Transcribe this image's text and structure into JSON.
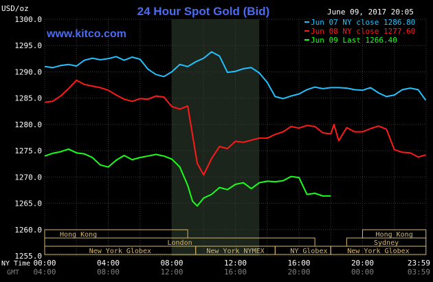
{
  "header": {
    "unit_label": "USD/oz",
    "title": "24 Hour Spot Gold (Bid)",
    "date": "June 09, 2017 20:05",
    "site": "www.kitco.com"
  },
  "colors": {
    "background": "#000000",
    "title": "#4a6cf0",
    "site": "#4a6cf0",
    "axis_text": "#ffffff",
    "grid": "#3a3a3a",
    "shade": "#1c251c",
    "session_box": "#d8b86a",
    "session_text": "#d8b86a",
    "gmt_text": "#808080",
    "series": [
      "#22c3ff",
      "#ff1a1a",
      "#1aff1a"
    ]
  },
  "chart_data": {
    "type": "line",
    "title": "24 Hour Spot Gold (Bid)",
    "ylabel": "USD/oz",
    "ylim": [
      1255.0,
      1300.0
    ],
    "xlim": [
      0,
      24
    ],
    "y_ticks": [
      "1300.0",
      "1295.0",
      "1290.0",
      "1285.0",
      "1280.0",
      "1275.0",
      "1270.0",
      "1265.0",
      "1260.0",
      "1255.0"
    ],
    "y_tick_values": [
      1300,
      1295,
      1290,
      1285,
      1280,
      1275,
      1270,
      1265,
      1260,
      1255
    ],
    "x_label_ny": "NY Time",
    "x_label_gmt": "GMT",
    "x_ticks_ny": [
      "00:00",
      "04:00",
      "08:00",
      "12:00",
      "16:00",
      "20:00",
      "23:59"
    ],
    "x_ticks_gmt": [
      "04:00",
      "08:00",
      "12:00",
      "16:00",
      "20:00",
      "00:00",
      "03:59"
    ],
    "x_tick_hours": [
      0,
      4,
      8,
      12,
      16,
      20,
      24
    ],
    "grid": true,
    "shaded_hours": [
      8.0,
      13.5
    ],
    "legend_position": "top-right",
    "series": [
      {
        "name": "Jun 07 NY close 1286.80",
        "x": [
          0,
          0.5,
          1,
          1.5,
          2,
          2.5,
          3,
          3.5,
          4,
          4.5,
          5,
          5.5,
          6,
          6.5,
          7,
          7.5,
          8,
          8.5,
          9,
          9.5,
          10,
          10.5,
          11,
          11.5,
          12,
          12.5,
          13,
          13.5,
          14,
          14.5,
          15,
          15.5,
          16,
          16.5,
          17,
          17.5,
          18,
          18.5,
          19,
          19.5,
          20,
          20.5,
          21,
          21.5,
          22,
          22.5,
          23,
          23.5,
          23.98
        ],
        "y": [
          1291.0,
          1290.8,
          1291.2,
          1291.4,
          1291.1,
          1292.2,
          1292.6,
          1292.3,
          1292.5,
          1292.9,
          1292.2,
          1292.8,
          1292.4,
          1290.5,
          1289.5,
          1289.1,
          1290.0,
          1291.4,
          1291.0,
          1291.9,
          1292.6,
          1293.8,
          1293.0,
          1289.9,
          1290.1,
          1290.6,
          1290.8,
          1289.8,
          1288.0,
          1285.3,
          1284.9,
          1285.4,
          1285.8,
          1286.6,
          1287.1,
          1286.8,
          1287.0,
          1287.0,
          1286.9,
          1286.6,
          1286.5,
          1287.0,
          1286.0,
          1285.3,
          1285.6,
          1286.6,
          1286.9,
          1286.6,
          1284.6
        ]
      },
      {
        "name": "Jun 08 NY close 1277.60",
        "x": [
          0,
          0.5,
          1,
          1.5,
          2,
          2.5,
          3,
          3.5,
          4,
          4.5,
          5,
          5.5,
          6,
          6.5,
          7,
          7.5,
          8,
          8.5,
          9,
          9.3,
          9.6,
          10,
          10.5,
          11,
          11.5,
          12,
          12.5,
          13,
          13.5,
          14,
          14.5,
          15,
          15.5,
          16,
          16.5,
          17,
          17.5,
          18,
          18.2,
          18.5,
          19,
          19.5,
          20,
          20.5,
          21,
          21.5,
          22,
          22.5,
          23,
          23.5,
          23.98
        ],
        "y": [
          1284.2,
          1284.4,
          1285.4,
          1286.8,
          1288.4,
          1287.6,
          1287.3,
          1287.0,
          1286.5,
          1285.6,
          1284.8,
          1284.4,
          1284.9,
          1284.8,
          1285.4,
          1285.2,
          1283.4,
          1282.9,
          1283.5,
          1278.0,
          1272.6,
          1270.4,
          1273.5,
          1275.8,
          1275.4,
          1276.8,
          1276.6,
          1277.0,
          1277.4,
          1277.4,
          1278.1,
          1278.6,
          1279.6,
          1279.3,
          1279.8,
          1279.6,
          1278.4,
          1278.2,
          1280.0,
          1276.9,
          1279.4,
          1278.6,
          1278.6,
          1279.2,
          1279.7,
          1279.1,
          1275.2,
          1274.7,
          1274.6,
          1273.8,
          1274.2
        ]
      },
      {
        "name": "Jun 09 Last 1266.40",
        "x": [
          0,
          0.5,
          1,
          1.5,
          2,
          2.5,
          3,
          3.5,
          4,
          4.5,
          5,
          5.5,
          6,
          6.5,
          7,
          7.5,
          8,
          8.5,
          9,
          9.3,
          9.6,
          10,
          10.5,
          11,
          11.5,
          12,
          12.5,
          13,
          13.5,
          14,
          14.5,
          15,
          15.5,
          16,
          16.5,
          17,
          17.5,
          18
        ],
        "y": [
          1274.0,
          1274.5,
          1274.8,
          1275.3,
          1274.6,
          1274.4,
          1273.7,
          1272.3,
          1271.9,
          1273.2,
          1274.1,
          1273.3,
          1273.7,
          1274.0,
          1274.3,
          1274.0,
          1273.4,
          1271.9,
          1268.4,
          1265.4,
          1264.5,
          1266.0,
          1266.7,
          1268.0,
          1267.6,
          1268.6,
          1268.9,
          1267.8,
          1268.9,
          1269.2,
          1269.1,
          1269.3,
          1270.1,
          1269.9,
          1266.7,
          1266.9,
          1266.4,
          1266.4
        ]
      }
    ]
  },
  "sessions": [
    {
      "label": "Hong Kong",
      "start": 0.0,
      "end": 9.0,
      "row": 0,
      "align": "left"
    },
    {
      "label": "London",
      "start": 0.0,
      "end": 17.0,
      "row": 1,
      "align": "center"
    },
    {
      "label": "New York Globex",
      "start": 0.0,
      "end": 9.5,
      "row": 2,
      "align": "center"
    },
    {
      "label": "New York NYMEX",
      "start": 9.5,
      "end": 14.5,
      "row": 2,
      "align": "center"
    },
    {
      "label": "NY Globex",
      "start": 14.5,
      "end": 18.0,
      "row": 2,
      "align": "left"
    },
    {
      "label": "Hong Kong",
      "start": 20.0,
      "end": 23.99,
      "row": 0,
      "align": "center"
    },
    {
      "label": "Sydney",
      "start": 19.0,
      "end": 23.99,
      "row": 1,
      "align": "center"
    },
    {
      "label": "New York Globex",
      "start": 18.0,
      "end": 23.99,
      "row": 2,
      "align": "center"
    }
  ]
}
